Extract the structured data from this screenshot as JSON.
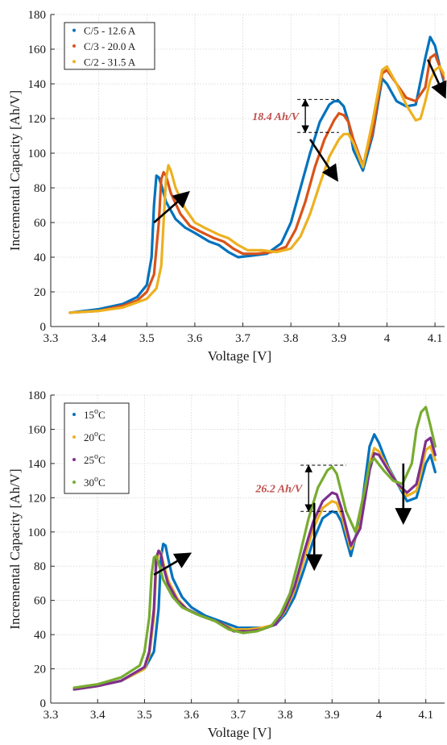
{
  "chart_data": [
    {
      "type": "line",
      "xlabel": "Voltage [V]",
      "ylabel": "Incremental Capacity [Ah/V]",
      "xlim": [
        3.3,
        4.12
      ],
      "ylim": [
        0,
        180
      ],
      "xticks": [
        "3.3",
        "3.4",
        "3.5",
        "3.6",
        "3.7",
        "3.8",
        "3.9",
        "4",
        "4.1"
      ],
      "yticks": [
        "0",
        "20",
        "40",
        "60",
        "80",
        "100",
        "120",
        "140",
        "160",
        "180"
      ],
      "grid": true,
      "legend_position": "top-left",
      "annotation": {
        "text": "18.4 Ah/V",
        "x": 3.83,
        "y_top": 131,
        "y_bottom": 112
      },
      "arrows": [
        {
          "from": [
            3.515,
            60
          ],
          "to": [
            3.585,
            77
          ]
        },
        {
          "from": [
            3.84,
            108
          ],
          "to": [
            3.895,
            85
          ]
        },
        {
          "from": [
            4.085,
            154
          ],
          "to": [
            4.12,
            133
          ]
        }
      ],
      "series": [
        {
          "name": "C/5 - 12.6 A",
          "color": "#0072BD",
          "x": [
            3.34,
            3.4,
            3.45,
            3.48,
            3.5,
            3.51,
            3.515,
            3.52,
            3.525,
            3.53,
            3.54,
            3.56,
            3.58,
            3.6,
            3.63,
            3.65,
            3.67,
            3.69,
            3.72,
            3.75,
            3.78,
            3.8,
            3.82,
            3.84,
            3.86,
            3.88,
            3.89,
            3.9,
            3.91,
            3.92,
            3.93,
            3.95,
            3.97,
            3.99,
            4.0,
            4.02,
            4.04,
            4.06,
            4.08,
            4.09,
            4.1,
            4.11,
            4.12
          ],
          "y": [
            8,
            10,
            13,
            17,
            24,
            40,
            70,
            87,
            86,
            82,
            72,
            62,
            57,
            54,
            49,
            47,
            43,
            40,
            41,
            42,
            48,
            60,
            80,
            100,
            118,
            128,
            130,
            130,
            127,
            118,
            102,
            90,
            110,
            143,
            140,
            130,
            127,
            128,
            155,
            167,
            162,
            150,
            140
          ]
        },
        {
          "name": "C/3 - 20.0 A",
          "color": "#D95319",
          "x": [
            3.34,
            3.4,
            3.45,
            3.48,
            3.5,
            3.515,
            3.525,
            3.53,
            3.535,
            3.54,
            3.55,
            3.57,
            3.59,
            3.61,
            3.64,
            3.66,
            3.68,
            3.7,
            3.73,
            3.76,
            3.79,
            3.81,
            3.83,
            3.85,
            3.87,
            3.89,
            3.9,
            3.91,
            3.92,
            3.93,
            3.95,
            3.97,
            3.99,
            4.0,
            4.02,
            4.04,
            4.06,
            4.08,
            4.09,
            4.1,
            4.11,
            4.12
          ],
          "y": [
            8,
            9,
            12,
            15,
            20,
            30,
            60,
            85,
            89,
            87,
            77,
            65,
            58,
            55,
            51,
            49,
            45,
            42,
            42,
            43,
            46,
            56,
            72,
            92,
            108,
            119,
            123,
            122,
            118,
            108,
            93,
            112,
            146,
            148,
            140,
            132,
            130,
            138,
            155,
            157,
            150,
            142
          ]
        },
        {
          "name": "C/2 - 31.5 A",
          "color": "#EDB120",
          "x": [
            3.34,
            3.4,
            3.45,
            3.5,
            3.52,
            3.53,
            3.535,
            3.54,
            3.545,
            3.55,
            3.56,
            3.58,
            3.6,
            3.62,
            3.65,
            3.67,
            3.69,
            3.71,
            3.74,
            3.77,
            3.8,
            3.82,
            3.84,
            3.86,
            3.88,
            3.9,
            3.91,
            3.92,
            3.93,
            3.95,
            3.97,
            3.99,
            4.0,
            4.02,
            4.04,
            4.06,
            4.07,
            4.08,
            4.09,
            4.1,
            4.11,
            4.12
          ],
          "y": [
            8,
            9,
            11,
            16,
            22,
            35,
            60,
            85,
            93,
            90,
            80,
            68,
            60,
            57,
            53,
            51,
            47,
            44,
            44,
            43,
            45,
            52,
            65,
            82,
            98,
            108,
            111,
            111,
            106,
            92,
            118,
            148,
            150,
            140,
            128,
            119,
            120,
            130,
            142,
            148,
            150,
            145
          ]
        }
      ]
    },
    {
      "type": "line",
      "xlabel": "Voltage [V]",
      "ylabel": "Incremental Capacity [Ah/V]",
      "xlim": [
        3.3,
        4.14
      ],
      "ylim": [
        0,
        180
      ],
      "xticks": [
        "3.3",
        "3.4",
        "3.5",
        "3.6",
        "3.7",
        "3.8",
        "3.9",
        "4",
        "4.1"
      ],
      "yticks": [
        "0",
        "20",
        "40",
        "60",
        "80",
        "100",
        "120",
        "140",
        "160",
        "180"
      ],
      "grid": true,
      "legend_position": "top-left",
      "annotation": {
        "text": "26.2 Ah/V",
        "x": 3.85,
        "y_top": 139,
        "y_bottom": 112
      },
      "arrows": [
        {
          "from": [
            3.52,
            75
          ],
          "to": [
            3.595,
            87
          ]
        },
        {
          "from": [
            3.862,
            117
          ],
          "to": [
            3.862,
            79
          ]
        },
        {
          "from": [
            4.052,
            140
          ],
          "to": [
            4.052,
            106
          ]
        }
      ],
      "series": [
        {
          "name": "15oC",
          "color": "#0072BD",
          "x": [
            3.35,
            3.4,
            3.45,
            3.5,
            3.52,
            3.53,
            3.535,
            3.54,
            3.545,
            3.55,
            3.56,
            3.58,
            3.6,
            3.63,
            3.65,
            3.67,
            3.7,
            3.73,
            3.76,
            3.78,
            3.8,
            3.82,
            3.84,
            3.86,
            3.88,
            3.9,
            3.91,
            3.92,
            3.94,
            3.96,
            3.98,
            3.99,
            4.0,
            4.02,
            4.04,
            4.06,
            4.08,
            4.09,
            4.1,
            4.11,
            4.12
          ],
          "y": [
            8,
            10,
            13,
            20,
            30,
            55,
            85,
            93,
            92,
            85,
            73,
            62,
            56,
            51,
            49,
            47,
            44,
            44,
            44,
            46,
            52,
            62,
            78,
            95,
            108,
            112,
            111,
            106,
            86,
            108,
            150,
            157,
            152,
            138,
            128,
            118,
            120,
            130,
            140,
            145,
            135
          ]
        },
        {
          "name": "20oC",
          "color": "#EDB120",
          "x": [
            3.35,
            3.4,
            3.45,
            3.5,
            3.51,
            3.52,
            3.525,
            3.53,
            3.535,
            3.54,
            3.55,
            3.57,
            3.59,
            3.62,
            3.64,
            3.66,
            3.69,
            3.72,
            3.75,
            3.78,
            3.8,
            3.82,
            3.84,
            3.86,
            3.88,
            3.9,
            3.91,
            3.92,
            3.94,
            3.96,
            3.98,
            3.99,
            4.0,
            4.02,
            4.04,
            4.06,
            4.08,
            4.09,
            4.1,
            4.11,
            4.12
          ],
          "y": [
            8,
            10,
            13,
            20,
            28,
            50,
            80,
            89,
            88,
            82,
            72,
            61,
            55,
            51,
            49,
            47,
            43,
            43,
            44,
            46,
            54,
            66,
            84,
            102,
            114,
            118,
            117,
            110,
            90,
            104,
            140,
            149,
            147,
            137,
            128,
            121,
            124,
            135,
            148,
            150,
            142
          ]
        },
        {
          "name": "25oC",
          "color": "#7E2F8E",
          "x": [
            3.35,
            3.4,
            3.45,
            3.5,
            3.51,
            3.52,
            3.525,
            3.53,
            3.535,
            3.54,
            3.55,
            3.57,
            3.59,
            3.62,
            3.64,
            3.66,
            3.69,
            3.72,
            3.75,
            3.78,
            3.8,
            3.82,
            3.84,
            3.86,
            3.88,
            3.9,
            3.91,
            3.92,
            3.94,
            3.96,
            3.98,
            3.99,
            4.0,
            4.02,
            4.04,
            4.06,
            4.08,
            4.09,
            4.1,
            4.11,
            4.12
          ],
          "y": [
            8,
            10,
            13,
            21,
            30,
            55,
            85,
            89,
            87,
            80,
            70,
            60,
            55,
            51,
            49,
            47,
            42,
            42,
            43,
            46,
            55,
            68,
            88,
            106,
            118,
            123,
            122,
            114,
            92,
            102,
            136,
            146,
            145,
            136,
            128,
            123,
            128,
            140,
            153,
            155,
            145
          ]
        },
        {
          "name": "30oC",
          "color": "#77AC30",
          "x": [
            3.35,
            3.4,
            3.45,
            3.49,
            3.5,
            3.51,
            3.515,
            3.52,
            3.525,
            3.53,
            3.54,
            3.56,
            3.58,
            3.61,
            3.63,
            3.65,
            3.68,
            3.71,
            3.74,
            3.77,
            3.79,
            3.81,
            3.83,
            3.85,
            3.87,
            3.89,
            3.9,
            3.91,
            3.93,
            3.95,
            3.97,
            3.98,
            3.99,
            4.01,
            4.03,
            4.05,
            4.07,
            4.08,
            4.09,
            4.1,
            4.11,
            4.12
          ],
          "y": [
            9,
            11,
            15,
            22,
            30,
            50,
            75,
            85,
            86,
            82,
            72,
            62,
            56,
            52,
            50,
            48,
            43,
            41,
            42,
            45,
            52,
            64,
            85,
            108,
            126,
            136,
            138,
            134,
            112,
            100,
            125,
            140,
            143,
            136,
            130,
            128,
            140,
            160,
            170,
            173,
            162,
            150
          ]
        }
      ]
    }
  ]
}
